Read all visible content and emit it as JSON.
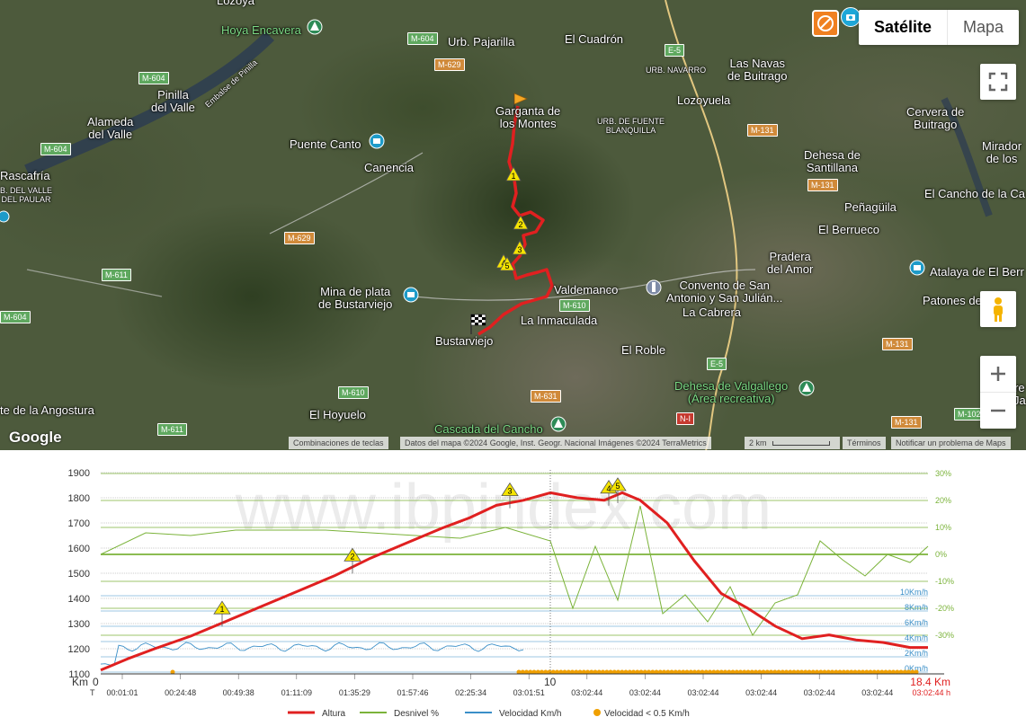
{
  "map": {
    "map_type_buttons": [
      "Satélite",
      "Mapa"
    ],
    "logo": "Google",
    "attribution": {
      "shortcuts": "Combinaciones de teclas",
      "data": "Datos del mapa ©2024 Google, Inst. Geogr. Nacional Imágenes ©2024 TerraMetrics",
      "scale": "2 km",
      "terms": "Términos",
      "report": "Notificar un problema de Maps"
    },
    "icons": [
      "fullscreen-icon",
      "pegman-icon",
      "zoom-in-icon",
      "zoom-out-icon",
      "no-photos-icon",
      "camera-icon",
      "start-flag-icon",
      "finish-flag-icon"
    ],
    "route_color": "#e02020",
    "places": {
      "lozoya": "Lozoya",
      "hoya_encavera": "Hoya Encavera",
      "embalse": "Embalse de Pinilla",
      "urb_pajarilla": "Urb. Pajarilla",
      "el_cuadron": "El Cuadrón",
      "urb_navarro": "URB. NAVARRO",
      "las_navas": "Las Navas\nde Buitrago",
      "pinilla": "Pinilla\ndel Valle",
      "alameda": "Alameda\ndel Valle",
      "gargantilla": "Garganta de\nlos Montes",
      "urb_fuente": "URB. DE FUENTE\nBLANQUILLA",
      "lozoyuela": "Lozoyuela",
      "cervera": "Cervera de\nBuitrago",
      "puente_canto": "Puente Canto",
      "canencia": "Canencia",
      "dehesa_santillana": "Dehesa de\nSantillana",
      "mirador": "Mirador\nde los",
      "rascafria": "Rascafría",
      "urb_valle": "B. DEL VALLE\nDEL PAULAR",
      "el_cancho": "El Cancho de la Ca",
      "penaguila": "Peñagüila",
      "el_berrueco": "El Berrueco",
      "pradera": "Pradera\ndel Amor",
      "atalaya": "Atalaya de El Berr",
      "mina": "Mina de plata\nde Bustarviejo",
      "valdemanco": "Valdemanco",
      "convento": "Convento de San\nAntonio y San Julián...",
      "patones": "Patones de",
      "la_cabrera": "La Cabrera",
      "la_inmaculada": "La Inmaculada",
      "bustarviejo": "Bustarviejo",
      "el_roble": "El Roble",
      "dehesa_valgallego": "Dehesa de Valgallego\n(Área recreativa)",
      "angostura": "te de la Angostura",
      "el_hoyuelo": "El Hoyuelo",
      "cascada": "Cascada del Cancho",
      "re_ja": "re\nJa"
    },
    "roads": {
      "m604a": "M-604",
      "m604b": "M-604",
      "m604c": "M-604",
      "m604d": "M-604",
      "m629a": "M-629",
      "m629b": "M-629",
      "e5a": "E-5",
      "e5b": "E-5",
      "m131a": "M-131",
      "m131b": "M-131",
      "m131c": "M-131",
      "m131d": "M-131",
      "m611a": "M-611",
      "m611b": "M-611",
      "m610a": "M-610",
      "m610b": "M-610",
      "m631": "M-631",
      "n1": "N-I",
      "m102": "M-102"
    },
    "waypoints": [
      "1",
      "2",
      "3",
      "4",
      "5"
    ]
  },
  "profile": {
    "watermark": "www.ibpindex.com",
    "km_label": "Km",
    "t_label": "T",
    "km_ticks": [
      "0",
      "10"
    ],
    "total_km": "18.4 Km",
    "total_time": "03:02:44 h",
    "time_ticks": [
      "00:01:01",
      "00:24:48",
      "00:49:38",
      "01:11:09",
      "01:35:29",
      "01:57:46",
      "02:25:34",
      "03:01:51",
      "03:02:44",
      "03:02:44",
      "03:02:44",
      "03:02:44",
      "03:02:44",
      "03:02:44"
    ],
    "speed_lines": [
      "10Km/h",
      "8Km/h",
      "6Km/h",
      "4Km/h",
      "2Km/h",
      "0Km/h"
    ],
    "legend": {
      "altura": "Altura",
      "desnivel": "Desnivel %",
      "velocidad": "Velocidad Km/h",
      "velocidad_low": "Velocidad < 0.5 Km/h"
    },
    "colors": {
      "altura": "#e02020",
      "desnivel": "#7bb33a",
      "velocidad": "#3a8fc8",
      "velocidad_low": "#f0a000"
    }
  },
  "chart_data": {
    "type": "line",
    "xlabel": "Km",
    "ylabel_left": "",
    "ylabel_right": "",
    "ylim": [
      1100,
      1900
    ],
    "y_ticks": [
      "1900",
      "1800",
      "1700",
      "1600",
      "1500",
      "1400",
      "1300",
      "1200",
      "1100"
    ],
    "y2lim": [
      -45,
      30
    ],
    "y2_ticks": [
      "30%",
      "20%",
      "10%",
      "0%",
      "-10%",
      "-20%",
      "-30%"
    ],
    "xlim": [
      0,
      18.4
    ],
    "series": [
      {
        "name": "Altura",
        "x": [
          0,
          0.6,
          1.2,
          2.0,
          2.8,
          3.6,
          4.4,
          5.2,
          6.0,
          6.8,
          7.6,
          8.2,
          8.8,
          9.4,
          10.0,
          10.6,
          11.2,
          11.6,
          12.0,
          12.6,
          13.2,
          13.8,
          14.4,
          15.0,
          15.6,
          16.2,
          16.8,
          17.4,
          18.0,
          18.4
        ],
        "values": [
          1115,
          1160,
          1200,
          1250,
          1310,
          1370,
          1430,
          1490,
          1560,
          1620,
          1680,
          1720,
          1770,
          1790,
          1820,
          1800,
          1790,
          1820,
          1790,
          1700,
          1550,
          1420,
          1360,
          1290,
          1240,
          1255,
          1235,
          1225,
          1205,
          1205
        ]
      },
      {
        "name": "Desnivel %",
        "x": [
          0,
          1,
          2,
          3,
          4,
          5,
          6,
          7,
          8,
          9,
          10,
          10.5,
          11,
          11.5,
          12,
          12.5,
          13,
          13.5,
          14,
          14.5,
          15,
          15.5,
          16,
          16.5,
          17,
          17.5,
          18,
          18.4
        ],
        "values": [
          0,
          8,
          7,
          9,
          9,
          9,
          8,
          7,
          6,
          10,
          5,
          -20,
          3,
          -17,
          18,
          -22,
          -15,
          -25,
          -12,
          -30,
          -18,
          -15,
          5,
          -2,
          -8,
          0,
          -3,
          3
        ]
      }
    ],
    "waypoints": [
      {
        "label": "1",
        "km": 2.7,
        "altura": 1310
      },
      {
        "label": "2",
        "km": 5.6,
        "altura": 1520
      },
      {
        "label": "3",
        "km": 9.1,
        "altura": 1780
      },
      {
        "label": "4",
        "km": 11.3,
        "altura": 1790
      },
      {
        "label": "5",
        "km": 11.5,
        "altura": 1800
      }
    ],
    "speed_ticks_kmh": [
      10,
      8,
      6,
      4,
      2,
      0
    ],
    "grid": true,
    "legend_position": "bottom"
  }
}
